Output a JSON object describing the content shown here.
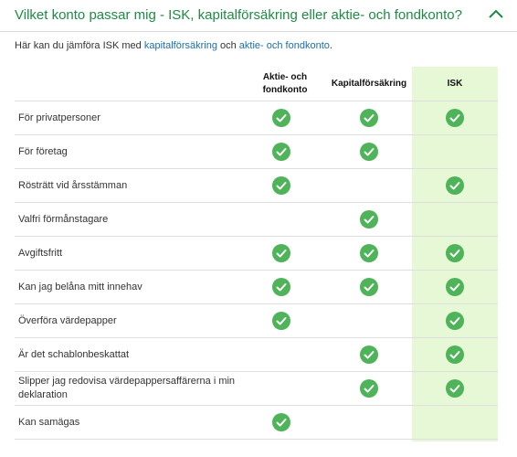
{
  "header": {
    "title": "Vilket konto passar mig - ISK, kapitalförsäkring eller aktie- och fondkonto?",
    "collapse_icon": "chevron-up-icon"
  },
  "intro": {
    "prefix": "Här kan du jämföra ISK med ",
    "link1": "kapitalförsäkring",
    "middle": " och ",
    "link2": "aktie- och fondkonto",
    "suffix": "."
  },
  "colors": {
    "accent": "#1f8a45",
    "check": "#4fb35a",
    "isk_bg": "#e6f8d6",
    "link": "#1b6fa8"
  },
  "table": {
    "columns": [
      "Aktie- och fondkonto",
      "Kapitalförsäkring",
      "ISK"
    ],
    "rows": [
      {
        "label": "För privatpersoner",
        "checks": [
          true,
          true,
          true
        ]
      },
      {
        "label": "För företag",
        "checks": [
          true,
          true,
          false
        ]
      },
      {
        "label": "Rösträtt vid årsstämman",
        "checks": [
          true,
          false,
          true
        ]
      },
      {
        "label": "Valfri förmånstagare",
        "checks": [
          false,
          true,
          false
        ]
      },
      {
        "label": "Avgiftsfritt",
        "checks": [
          true,
          true,
          true
        ]
      },
      {
        "label": "Kan jag belåna mitt innehav",
        "checks": [
          true,
          true,
          true
        ]
      },
      {
        "label": "Överföra värdepapper",
        "checks": [
          true,
          false,
          true
        ]
      },
      {
        "label": "Är det schablonbeskattat",
        "checks": [
          false,
          true,
          true
        ]
      },
      {
        "label": "Slipper jag redovisa värdepappersaffärerna i min deklaration",
        "checks": [
          false,
          true,
          true
        ]
      },
      {
        "label": "Kan samägas",
        "checks": [
          true,
          false,
          false
        ]
      }
    ]
  }
}
